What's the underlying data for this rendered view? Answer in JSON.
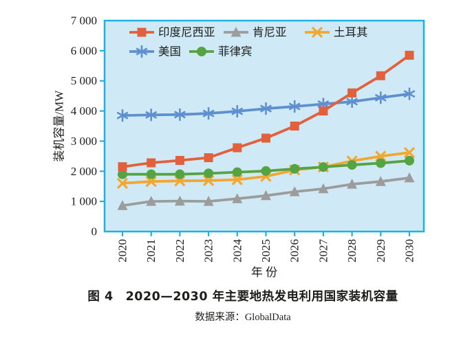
{
  "figure": {
    "caption": "图 4　2020—2030 年主要地热发电利用国家装机容量",
    "source": "数据来源：GlobalData"
  },
  "chart_data": {
    "type": "line",
    "title": "",
    "xlabel": "年 份",
    "ylabel": "装机容量/MW",
    "x": [
      "2020",
      "2021",
      "2022",
      "2023",
      "2024",
      "2025",
      "2026",
      "2027",
      "2028",
      "2029",
      "2030"
    ],
    "ylim": [
      0,
      7000
    ],
    "ytick_step": 1000,
    "ytick_labels": [
      "0",
      "1 000",
      "2 000",
      "3 000",
      "4 000",
      "5 000",
      "6 000",
      "7 000"
    ],
    "grid": false,
    "legend_position": "top-left-inside",
    "legend_rows": [
      [
        "印度尼西亚",
        "肯尼亚",
        "土耳其"
      ],
      [
        "美国",
        "菲律宾"
      ]
    ],
    "series": [
      {
        "key": "kenya",
        "name": "肯尼亚",
        "marker": "triangle",
        "color": "#9c9c9c",
        "values": [
          860,
          1000,
          1010,
          1000,
          1090,
          1190,
          1320,
          1420,
          1570,
          1660,
          1780
        ]
      },
      {
        "key": "turkey",
        "name": "土耳其",
        "marker": "x",
        "color": "#f2a72e",
        "values": [
          1600,
          1660,
          1680,
          1690,
          1720,
          1830,
          2040,
          2140,
          2340,
          2500,
          2620
        ]
      },
      {
        "key": "philippines",
        "name": "菲律宾",
        "marker": "circle",
        "color": "#56a343",
        "values": [
          1900,
          1900,
          1900,
          1930,
          1970,
          2010,
          2080,
          2140,
          2210,
          2270,
          2350
        ]
      },
      {
        "key": "usa",
        "name": "美国",
        "marker": "asterisk",
        "color": "#5e90d0",
        "values": [
          3850,
          3870,
          3880,
          3920,
          3990,
          4080,
          4150,
          4230,
          4310,
          4440,
          4570
        ]
      },
      {
        "key": "indonesia",
        "name": "印度尼西亚",
        "marker": "square",
        "color": "#e2603c",
        "values": [
          2150,
          2280,
          2360,
          2450,
          2780,
          3100,
          3500,
          4000,
          4600,
          5170,
          5850
        ]
      }
    ],
    "colors": {
      "plot_bg": "#cfeaf6",
      "axis": "#1ab3e8",
      "text": "#1d1d1b"
    }
  }
}
